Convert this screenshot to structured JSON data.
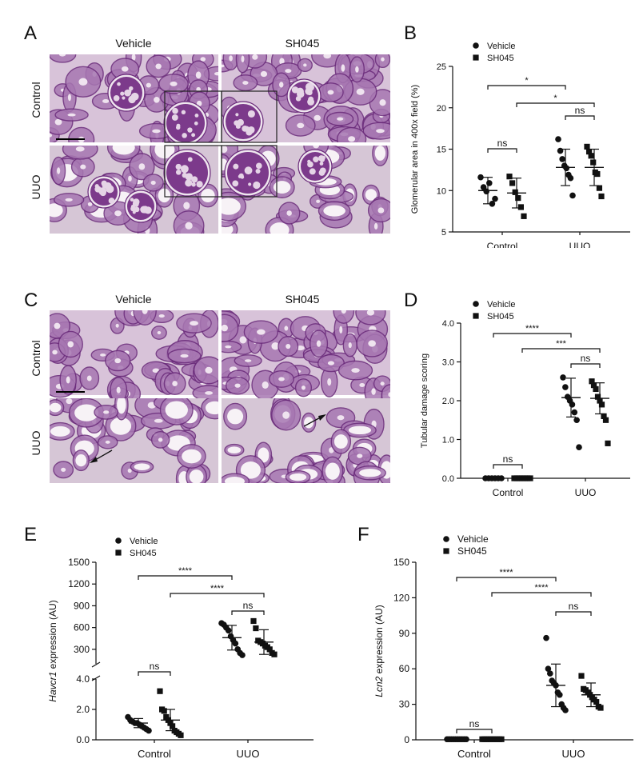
{
  "panels": {
    "A": "A",
    "B": "B",
    "C": "C",
    "D": "D",
    "E": "E",
    "F": "F"
  },
  "micrographs": {
    "col_vehicle": "Vehicle",
    "col_sh045": "SH045",
    "row_control": "Control",
    "row_uuo": "UUO"
  },
  "colors": {
    "pas_bg": "#d8c3d9",
    "pas_dark": "#6a2b7a",
    "pas_mid": "#a777b2",
    "lumen": "#f7f2f6"
  },
  "chart_data": [
    {
      "id": "B",
      "type": "scatter",
      "ylabel": "Glomerular area in 400x field (%)",
      "xlabel": "",
      "categories": [
        "Control",
        "UUO"
      ],
      "ylim": [
        5,
        25
      ],
      "yticks": [
        5,
        10,
        15,
        20,
        25
      ],
      "legend": [
        "Vehicle",
        "SH045"
      ],
      "legend_position": "top-left",
      "series": [
        {
          "name": "Vehicle",
          "marker": "circle",
          "mean": [
            10.0,
            12.8
          ],
          "sd": [
            1.6,
            2.2
          ],
          "points": [
            [
              11.6,
              10.4,
              9.9,
              10.9,
              8.4,
              9.0
            ],
            [
              16.2,
              14.8,
              13.8,
              13.0,
              12.7,
              11.9,
              11.5,
              9.4
            ]
          ]
        },
        {
          "name": "SH045",
          "marker": "square",
          "mean": [
            9.7,
            12.8
          ],
          "sd": [
            1.8,
            2.2
          ],
          "points": [
            [
              11.7,
              10.9,
              9.8,
              9.1,
              8.0,
              6.9
            ],
            [
              15.3,
              14.7,
              14.2,
              13.4,
              12.2,
              12.0,
              10.3,
              9.3
            ]
          ]
        }
      ],
      "comparisons": [
        {
          "from": "Control:Vehicle",
          "to": "UUO:Vehicle",
          "label": "*"
        },
        {
          "from": "Control:SH045",
          "to": "UUO:SH045",
          "label": "*"
        },
        {
          "from": "UUO:Vehicle",
          "to": "UUO:SH045",
          "label": "ns"
        },
        {
          "from": "Control:Vehicle",
          "to": "Control:SH045",
          "label": "ns"
        }
      ]
    },
    {
      "id": "D",
      "type": "scatter",
      "ylabel": "Tubular damage scoring",
      "xlabel": "",
      "categories": [
        "Control",
        "UUO"
      ],
      "ylim": [
        0,
        4
      ],
      "yticks": [
        0.0,
        1.0,
        2.0,
        3.0,
        4.0
      ],
      "ytick_labels": [
        "0.0",
        "1.0",
        "2.0",
        "3.0",
        "4.0"
      ],
      "legend": [
        "Vehicle",
        "SH045"
      ],
      "legend_position": "top-left",
      "series": [
        {
          "name": "Vehicle",
          "marker": "circle",
          "mean": [
            0.0,
            2.08
          ],
          "sd": [
            0.0,
            0.5
          ],
          "points": [
            [
              0,
              0,
              0,
              0,
              0,
              0
            ],
            [
              2.6,
              2.35,
              2.1,
              2.0,
              1.9,
              1.7,
              1.5,
              0.8
            ]
          ]
        },
        {
          "name": "SH045",
          "marker": "square",
          "mean": [
            0.0,
            2.06
          ],
          "sd": [
            0.0,
            0.4
          ],
          "points": [
            [
              0,
              0,
              0,
              0,
              0,
              0,
              0
            ],
            [
              2.5,
              2.4,
              2.3,
              2.1,
              2.0,
              1.9,
              1.6,
              1.5,
              0.9
            ]
          ]
        }
      ],
      "comparisons": [
        {
          "from": "Control:Vehicle",
          "to": "UUO:Vehicle",
          "label": "****"
        },
        {
          "from": "Control:SH045",
          "to": "UUO:SH045",
          "label": "***"
        },
        {
          "from": "UUO:Vehicle",
          "to": "UUO:SH045",
          "label": "ns"
        },
        {
          "from": "Control:Vehicle",
          "to": "Control:SH045",
          "label": "ns"
        }
      ]
    },
    {
      "id": "E",
      "type": "scatter",
      "ylabel_gene": "Havcr1",
      "ylabel_rest": " expression (AU)",
      "xlabel": "",
      "categories": [
        "Control",
        "UUO"
      ],
      "broken_axis": true,
      "ylim_lower": [
        0,
        4
      ],
      "yticks_lower": [
        0.0,
        2.0,
        4.0
      ],
      "ytick_labels_lower": [
        "0.0",
        "2.0",
        "4.0"
      ],
      "ylim_upper": [
        100,
        1500
      ],
      "yticks_upper": [
        300,
        600,
        900,
        1200,
        1500
      ],
      "legend": [
        "Vehicle",
        "SH045"
      ],
      "legend_position": "top-left",
      "series": [
        {
          "name": "Vehicle",
          "marker": "circle",
          "mean_lower": [
            1.1
          ],
          "sd_lower": [
            0.3
          ],
          "mean_upper": [
            460
          ],
          "sd_upper": [
            170
          ],
          "points_lower": [
            [
              1.5,
              1.3,
              1.2,
              1.1,
              1.1,
              1.0,
              0.9,
              0.8,
              0.7,
              0.6
            ]
          ],
          "points_upper": [
            [
              660,
              640,
              600,
              560,
              480,
              430,
              380,
              300,
              250,
              220
            ]
          ]
        },
        {
          "name": "SH045",
          "marker": "square",
          "mean_lower": [
            1.3
          ],
          "sd_lower": [
            0.7
          ],
          "mean_upper": [
            400
          ],
          "sd_upper": [
            170
          ],
          "points_lower": [
            [
              3.2,
              2.0,
              1.9,
              1.5,
              1.3,
              1.1,
              0.9,
              0.6,
              0.5,
              0.4,
              0.3
            ]
          ],
          "points_upper": [
            [
              690,
              590,
              420,
              400,
              380,
              350,
              330,
              300,
              250,
              230
            ]
          ]
        }
      ],
      "comparisons": [
        {
          "from": "Control:Vehicle",
          "to": "UUO:Vehicle",
          "label": "****"
        },
        {
          "from": "Control:SH045",
          "to": "UUO:SH045",
          "label": "****"
        },
        {
          "from": "UUO:Vehicle",
          "to": "UUO:SH045",
          "label": "ns"
        },
        {
          "from": "Control:Vehicle",
          "to": "Control:SH045",
          "label": "ns"
        }
      ]
    },
    {
      "id": "F",
      "type": "scatter",
      "ylabel_gene": "Lcn2",
      "ylabel_rest": " expression (AU)",
      "xlabel": "",
      "categories": [
        "Control",
        "UUO"
      ],
      "ylim": [
        0,
        150
      ],
      "yticks": [
        0,
        30,
        60,
        90,
        120,
        150
      ],
      "legend": [
        "Vehicle",
        "SH045"
      ],
      "legend_position": "top-left",
      "series": [
        {
          "name": "Vehicle",
          "marker": "circle",
          "mean": [
            0.5,
            46
          ],
          "sd": [
            0.3,
            18
          ],
          "points": [
            [
              0.5,
              0.5,
              0.5,
              0.5,
              0.5,
              0.5,
              0.5,
              0.5,
              0.5,
              0.5
            ],
            [
              86,
              60,
              56,
              50,
              48,
              46,
              40,
              38,
              30,
              27,
              25
            ]
          ]
        },
        {
          "name": "SH045",
          "marker": "square",
          "mean": [
            0.5,
            38
          ],
          "sd": [
            0.3,
            10
          ],
          "points": [
            [
              0.5,
              0.5,
              0.5,
              0.5,
              0.5,
              0.5,
              0.5,
              0.5,
              0.5,
              0.5
            ],
            [
              54,
              43,
              42,
              40,
              38,
              36,
              34,
              32,
              28,
              27
            ]
          ]
        }
      ],
      "comparisons": [
        {
          "from": "Control:Vehicle",
          "to": "UUO:Vehicle",
          "label": "****"
        },
        {
          "from": "Control:SH045",
          "to": "UUO:SH045",
          "label": "****"
        },
        {
          "from": "UUO:Vehicle",
          "to": "UUO:SH045",
          "label": "ns"
        },
        {
          "from": "Control:Vehicle",
          "to": "Control:SH045",
          "label": "ns"
        }
      ]
    }
  ]
}
